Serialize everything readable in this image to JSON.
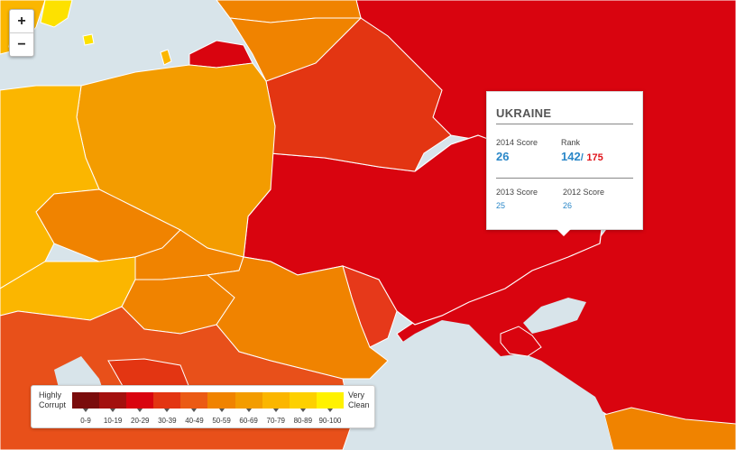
{
  "map": {
    "colors": {
      "sea": "#d8e4ea",
      "ukraine": "#d9040f",
      "russia": "#d9040f",
      "belarus": "#e33512",
      "poland": "#f39c00",
      "germany": "#fbb600",
      "czech": "#f08300",
      "austria": "#fbb600",
      "slovakia": "#f08300",
      "hungary": "#f08300",
      "romania": "#f08300",
      "moldova": "#e6391a",
      "lithuania": "#f08300",
      "latvia": "#f08300",
      "kaliningrad": "#d9040f",
      "denmark": "#fde100",
      "sweden": "#fbb600",
      "balkans": "#e8501a",
      "bosnia": "#e33512",
      "turkey": "#f08300"
    }
  },
  "zoom": {
    "in_label": "+",
    "out_label": "−"
  },
  "popup": {
    "country": "UKRAINE",
    "score_2014_label": "2014 Score",
    "score_2014": "26",
    "rank_label": "Rank",
    "rank": "142",
    "rank_sep": "/",
    "rank_total": "175",
    "score_2013_label": "2013 Score",
    "score_2013": "25",
    "score_2012_label": "2012 Score",
    "score_2012": "26"
  },
  "legend": {
    "left_line1": "Highly",
    "left_line2": "Corrupt",
    "right_line1": "Very",
    "right_line2": "Clean",
    "bins": [
      "0-9",
      "10-19",
      "20-29",
      "30-39",
      "40-49",
      "50-59",
      "60-69",
      "70-79",
      "80-89",
      "90-100"
    ],
    "colors": [
      "#7a0c0c",
      "#a3100e",
      "#d9040f",
      "#e33512",
      "#eb5a14",
      "#f08300",
      "#f39c00",
      "#fbb600",
      "#fdd000",
      "#fff200"
    ]
  }
}
